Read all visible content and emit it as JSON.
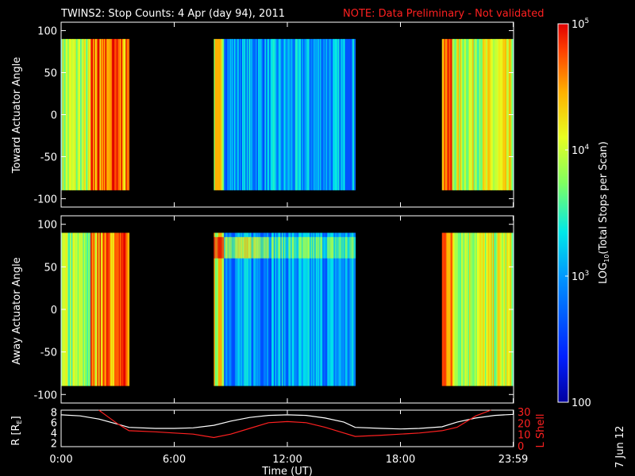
{
  "header": {
    "title": "TWINS2: Stop Counts:  4 Apr (day  94), 2011",
    "note": "NOTE: Data Preliminary - Not validated"
  },
  "colorbar": {
    "label": "LOG10(Total Stops per Scan)",
    "ticks": [
      "10^5",
      "10^4",
      "10^3",
      "100"
    ],
    "range": [
      100,
      100000
    ],
    "scale": "log"
  },
  "footer": {
    "date_stamp": "7 Jun 12"
  },
  "chart_data": [
    {
      "type": "heatmap",
      "ylabel": "Toward Actuator Angle",
      "ylim": [
        -110,
        110
      ],
      "yticks": [
        "100",
        "50",
        "0",
        "-50",
        "-100"
      ],
      "data_y_range": [
        -90,
        90
      ],
      "coverage_hours": [
        [
          0.0,
          3.6
        ],
        [
          8.1,
          15.6
        ],
        [
          20.2,
          23.98
        ]
      ],
      "typical_log10_counts": {
        "segment_1": 3.9,
        "segment_2": 3.0,
        "segment_3": 4.0
      }
    },
    {
      "type": "heatmap",
      "ylabel": "Away Actuator Angle",
      "ylim": [
        -110,
        110
      ],
      "yticks": [
        "100",
        "50",
        "0",
        "-50",
        "-100"
      ],
      "data_y_range": [
        -90,
        90
      ],
      "coverage_hours": [
        [
          0.0,
          3.6
        ],
        [
          8.1,
          15.6
        ],
        [
          20.2,
          23.98
        ]
      ],
      "typical_log10_counts": {
        "segment_1": 3.8,
        "segment_2": 3.0,
        "segment_3": 4.0
      }
    },
    {
      "type": "line",
      "xlabel": "Time (UT)",
      "xticks": [
        "0:00",
        "6:00",
        "12:00",
        "18:00",
        "23:59"
      ],
      "xlim": [
        0,
        24
      ],
      "y_left_label": "R [RE]",
      "y_left_ticks": [
        "8",
        "6",
        "4",
        "2"
      ],
      "y_left_lim": [
        1.5,
        8.5
      ],
      "y_right_label": "L Shell",
      "y_right_ticks": [
        "30",
        "20",
        "10",
        "0"
      ],
      "y_right_lim": [
        0,
        32
      ],
      "series": [
        {
          "name": "R [RE]",
          "axis": "left",
          "color": "#ffffff",
          "x": [
            0,
            1,
            2,
            3,
            3.6,
            5,
            6,
            7,
            8.1,
            9,
            10,
            11,
            12,
            13,
            14,
            15,
            15.6,
            17,
            18,
            19,
            20.2,
            21,
            22,
            23,
            24
          ],
          "y": [
            7.6,
            7.4,
            6.8,
            5.8,
            5.2,
            5.0,
            5.0,
            5.1,
            5.6,
            6.4,
            7.1,
            7.5,
            7.6,
            7.5,
            7.0,
            6.2,
            5.2,
            5.0,
            4.9,
            5.0,
            5.3,
            6.2,
            7.0,
            7.5,
            7.7
          ]
        },
        {
          "name": "L Shell",
          "axis": "right",
          "color": "#ff2020",
          "x": [
            2.0,
            3.0,
            3.6,
            5,
            6,
            7,
            8.1,
            9,
            10,
            11,
            12,
            13,
            14,
            15,
            15.6,
            17,
            18,
            19,
            20.2,
            21,
            22,
            22.8
          ],
          "y": [
            33,
            20,
            14,
            13,
            12,
            11,
            8,
            11,
            16,
            21,
            22,
            21,
            17,
            12,
            9,
            10,
            11,
            12,
            14,
            17,
            27,
            34
          ]
        }
      ]
    }
  ]
}
